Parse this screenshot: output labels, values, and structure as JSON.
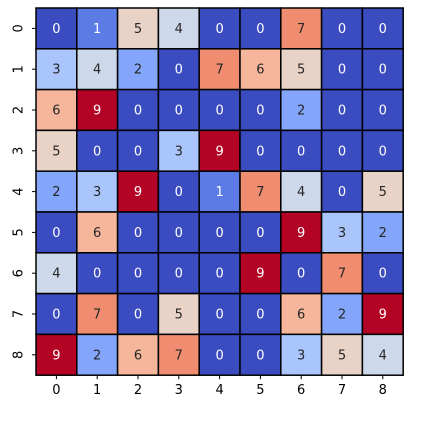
{
  "chart_data": {
    "type": "heatmap",
    "title": "",
    "xlabel": "",
    "ylabel": "",
    "x_categories": [
      "0",
      "1",
      "2",
      "3",
      "4",
      "5",
      "6",
      "7",
      "8"
    ],
    "y_categories": [
      "0",
      "1",
      "2",
      "3",
      "4",
      "5",
      "6",
      "7",
      "8"
    ],
    "values": [
      [
        0,
        1,
        5,
        4,
        0,
        0,
        7,
        0,
        0
      ],
      [
        3,
        4,
        2,
        0,
        7,
        6,
        5,
        0,
        0
      ],
      [
        6,
        9,
        0,
        0,
        0,
        0,
        2,
        0,
        0
      ],
      [
        5,
        0,
        0,
        3,
        9,
        0,
        0,
        0,
        0
      ],
      [
        2,
        3,
        9,
        0,
        1,
        7,
        4,
        0,
        5
      ],
      [
        0,
        6,
        0,
        0,
        0,
        0,
        9,
        3,
        2
      ],
      [
        4,
        0,
        0,
        0,
        0,
        9,
        0,
        7,
        0
      ],
      [
        0,
        7,
        0,
        5,
        0,
        0,
        6,
        2,
        9
      ],
      [
        9,
        2,
        6,
        7,
        0,
        0,
        3,
        5,
        4
      ]
    ],
    "vmin": 0,
    "vmax": 9,
    "colormap": "coolwarm",
    "annotations": true,
    "colorbar": false,
    "cell_border_color": "#000000",
    "colors": [
      "#3b4cc0",
      "#5977e3",
      "#7b9ff9",
      "#9ebeff",
      "#c0d4f5",
      "#dddcdc",
      "#f2cbb7",
      "#f7ac8e",
      "#ee8468",
      "#d65244",
      "#b40426"
    ]
  }
}
